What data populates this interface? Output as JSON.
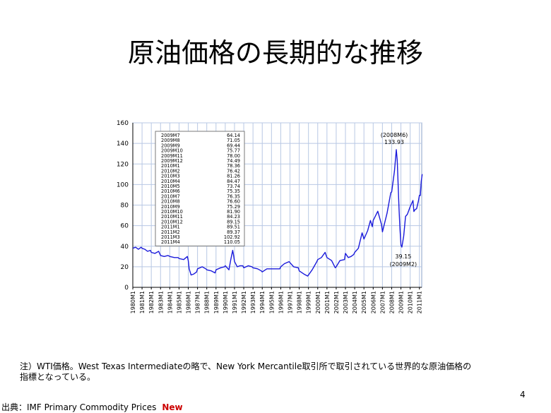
{
  "slide": {
    "title": "原油価格の長期的な推移",
    "note_line1": "注）WTI価格。West Texas Intermediateの略で、New York Mercantile取引所で取引されている世界的な原油価格の",
    "note_line2": "指標となっている。",
    "page_number": "4",
    "source_label": "出典：IMF Primary Commodity Prices",
    "source_new": "New"
  },
  "chart_data": {
    "type": "line",
    "title": "",
    "xlabel": "",
    "ylabel": "",
    "ylim": [
      0,
      160
    ],
    "yticks": [
      "0",
      "20",
      "40",
      "60",
      "80",
      "100",
      "120",
      "140",
      "160"
    ],
    "xticks": [
      "1980M1",
      "1981M1",
      "1982M1",
      "1983M1",
      "1984M1",
      "1985M1",
      "1986M1",
      "1987M1",
      "1988M1",
      "1989M1",
      "1990M1",
      "1991M1",
      "1992M1",
      "1993M1",
      "1994M1",
      "1995M1",
      "1996M1",
      "1997M1",
      "1998M1",
      "1999M1",
      "2000M1",
      "2001M1",
      "2002M1",
      "2003M1",
      "2004M1",
      "2005M1",
      "2006M1",
      "2007M1",
      "2008M1",
      "2009M1",
      "2010M1",
      "2011M1"
    ],
    "grid": true,
    "line_color": "#1a1adb",
    "series": [
      {
        "points": [
          [
            1980.0,
            38
          ],
          [
            1980.3,
            39
          ],
          [
            1980.6,
            37
          ],
          [
            1980.9,
            39
          ],
          [
            1981.0,
            38
          ],
          [
            1981.3,
            37
          ],
          [
            1981.6,
            35
          ],
          [
            1981.9,
            36
          ],
          [
            1982.0,
            34
          ],
          [
            1982.4,
            33
          ],
          [
            1982.8,
            35
          ],
          [
            1983.0,
            31
          ],
          [
            1983.4,
            30
          ],
          [
            1983.8,
            31
          ],
          [
            1984.0,
            30
          ],
          [
            1984.5,
            29
          ],
          [
            1984.9,
            29
          ],
          [
            1985.0,
            28
          ],
          [
            1985.5,
            27
          ],
          [
            1985.9,
            30
          ],
          [
            1986.0,
            26
          ],
          [
            1986.1,
            18
          ],
          [
            1986.3,
            12
          ],
          [
            1986.6,
            13
          ],
          [
            1986.9,
            15
          ],
          [
            1987.0,
            18
          ],
          [
            1987.5,
            20
          ],
          [
            1987.9,
            18
          ],
          [
            1988.0,
            17
          ],
          [
            1988.5,
            16
          ],
          [
            1988.9,
            14
          ],
          [
            1989.0,
            17
          ],
          [
            1989.5,
            19
          ],
          [
            1989.9,
            20
          ],
          [
            1990.0,
            21
          ],
          [
            1990.4,
            17
          ],
          [
            1990.6,
            27
          ],
          [
            1990.8,
            36
          ],
          [
            1990.9,
            31
          ],
          [
            1991.0,
            25
          ],
          [
            1991.3,
            20
          ],
          [
            1991.6,
            21
          ],
          [
            1991.9,
            21
          ],
          [
            1992.0,
            19
          ],
          [
            1992.5,
            21
          ],
          [
            1992.9,
            20
          ],
          [
            1993.0,
            19
          ],
          [
            1993.5,
            18
          ],
          [
            1993.9,
            16
          ],
          [
            1994.0,
            15
          ],
          [
            1994.5,
            18
          ],
          [
            1994.9,
            18
          ],
          [
            1995.0,
            18
          ],
          [
            1995.5,
            18
          ],
          [
            1995.9,
            18
          ],
          [
            1996.0,
            20
          ],
          [
            1996.4,
            23
          ],
          [
            1996.9,
            25
          ],
          [
            1997.0,
            24
          ],
          [
            1997.4,
            20
          ],
          [
            1997.9,
            19
          ],
          [
            1998.0,
            16
          ],
          [
            1998.5,
            13
          ],
          [
            1998.9,
            11
          ],
          [
            1999.0,
            12
          ],
          [
            1999.4,
            17
          ],
          [
            1999.9,
            25
          ],
          [
            2000.0,
            27
          ],
          [
            2000.4,
            29
          ],
          [
            2000.8,
            34
          ],
          [
            2001.0,
            29
          ],
          [
            2001.5,
            26
          ],
          [
            2001.9,
            19
          ],
          [
            2002.0,
            20
          ],
          [
            2002.4,
            26
          ],
          [
            2002.9,
            27
          ],
          [
            2003.0,
            33
          ],
          [
            2003.3,
            29
          ],
          [
            2003.6,
            30
          ],
          [
            2003.9,
            32
          ],
          [
            2004.0,
            34
          ],
          [
            2004.4,
            38
          ],
          [
            2004.8,
            53
          ],
          [
            2005.0,
            47
          ],
          [
            2005.4,
            55
          ],
          [
            2005.7,
            65
          ],
          [
            2005.9,
            59
          ],
          [
            2006.0,
            65
          ],
          [
            2006.5,
            74
          ],
          [
            2006.9,
            61
          ],
          [
            2007.0,
            54
          ],
          [
            2007.5,
            72
          ],
          [
            2007.9,
            92
          ],
          [
            2008.0,
            93
          ],
          [
            2008.3,
            113
          ],
          [
            2008.5,
            133.93
          ],
          [
            2008.6,
            124
          ],
          [
            2008.8,
            76
          ],
          [
            2008.9,
            57
          ],
          [
            2009.0,
            41
          ],
          [
            2009.1,
            39.15
          ],
          [
            2009.3,
            50
          ],
          [
            2009.5,
            69
          ],
          [
            2009.7,
            71.05
          ],
          [
            2010.0,
            78.36
          ],
          [
            2010.3,
            84.47
          ],
          [
            2010.4,
            73.74
          ],
          [
            2010.5,
            75.35
          ],
          [
            2010.7,
            76.6
          ],
          [
            2010.9,
            84.23
          ],
          [
            2011.0,
            89.51
          ],
          [
            2011.1,
            89.37
          ],
          [
            2011.2,
            102.92
          ],
          [
            2011.3,
            110.05
          ]
        ]
      }
    ],
    "annotations": [
      {
        "label": "(2008M6)",
        "value_label": "133.93",
        "x": 2008.5,
        "y": 133.93,
        "position": "above"
      },
      {
        "label": "(2009M2)",
        "value_label": "39.15",
        "x": 2009.1,
        "y": 39.15,
        "position": "below"
      }
    ],
    "legend_table": {
      "placement": "top-left",
      "rows": [
        [
          "2009M7",
          "64.14"
        ],
        [
          "2009M8",
          "71.05"
        ],
        [
          "2009M9",
          "69.44"
        ],
        [
          "2009M10",
          "75.77"
        ],
        [
          "2009M11",
          "78.00"
        ],
        [
          "2009M12",
          "74.49"
        ],
        [
          "2010M1",
          "78.36"
        ],
        [
          "2010M2",
          "76.42"
        ],
        [
          "2010M3",
          "81.26"
        ],
        [
          "2010M4",
          "84.47"
        ],
        [
          "2010M5",
          "73.74"
        ],
        [
          "2010M6",
          "75.35"
        ],
        [
          "2010M7",
          "76.35"
        ],
        [
          "2010M8",
          "76.60"
        ],
        [
          "2010M9",
          "75.29"
        ],
        [
          "2010M10",
          "81.90"
        ],
        [
          "2010M11",
          "84.23"
        ],
        [
          "2010M12",
          "89.15"
        ],
        [
          "2011M1",
          "89.51"
        ],
        [
          "2011M2",
          "89.37"
        ],
        [
          "2011M3",
          "102.92"
        ],
        [
          "2011M4",
          "110.05"
        ]
      ]
    }
  }
}
